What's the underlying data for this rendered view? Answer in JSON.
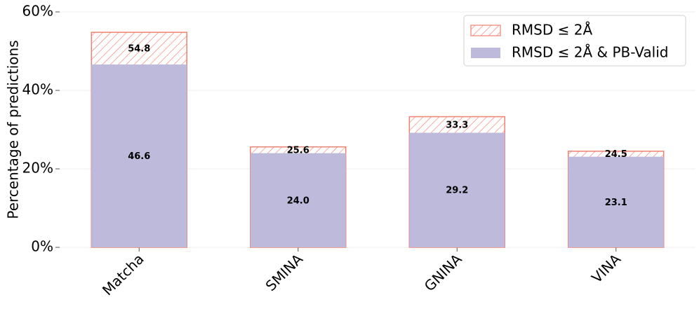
{
  "chart_data": {
    "type": "bar",
    "ylabel": "Percentage of predictions",
    "categories": [
      "Matcha",
      "SMINA",
      "GNINA",
      "VINA"
    ],
    "series": [
      {
        "name": "RMSD ≤ 2Å",
        "color": "#f08070",
        "hatch": true,
        "values": [
          54.8,
          25.6,
          33.3,
          24.5
        ],
        "value_labels": [
          "54.8",
          "25.6",
          "33.3",
          "24.5"
        ]
      },
      {
        "name": "RMSD ≤ 2Å & PB-Valid",
        "color": "#bdbadb",
        "values": [
          46.6,
          24.0,
          29.2,
          23.1
        ],
        "value_labels": [
          "46.6",
          "24.0",
          "29.2",
          "23.1"
        ]
      }
    ],
    "ylim": [
      0,
      60
    ],
    "yticks": [
      {
        "value": 0,
        "label": "0%"
      },
      {
        "value": 20,
        "label": "20%"
      },
      {
        "value": 40,
        "label": "40%"
      },
      {
        "value": 60,
        "label": "60%"
      }
    ],
    "grid": true,
    "legend": "upper right"
  }
}
